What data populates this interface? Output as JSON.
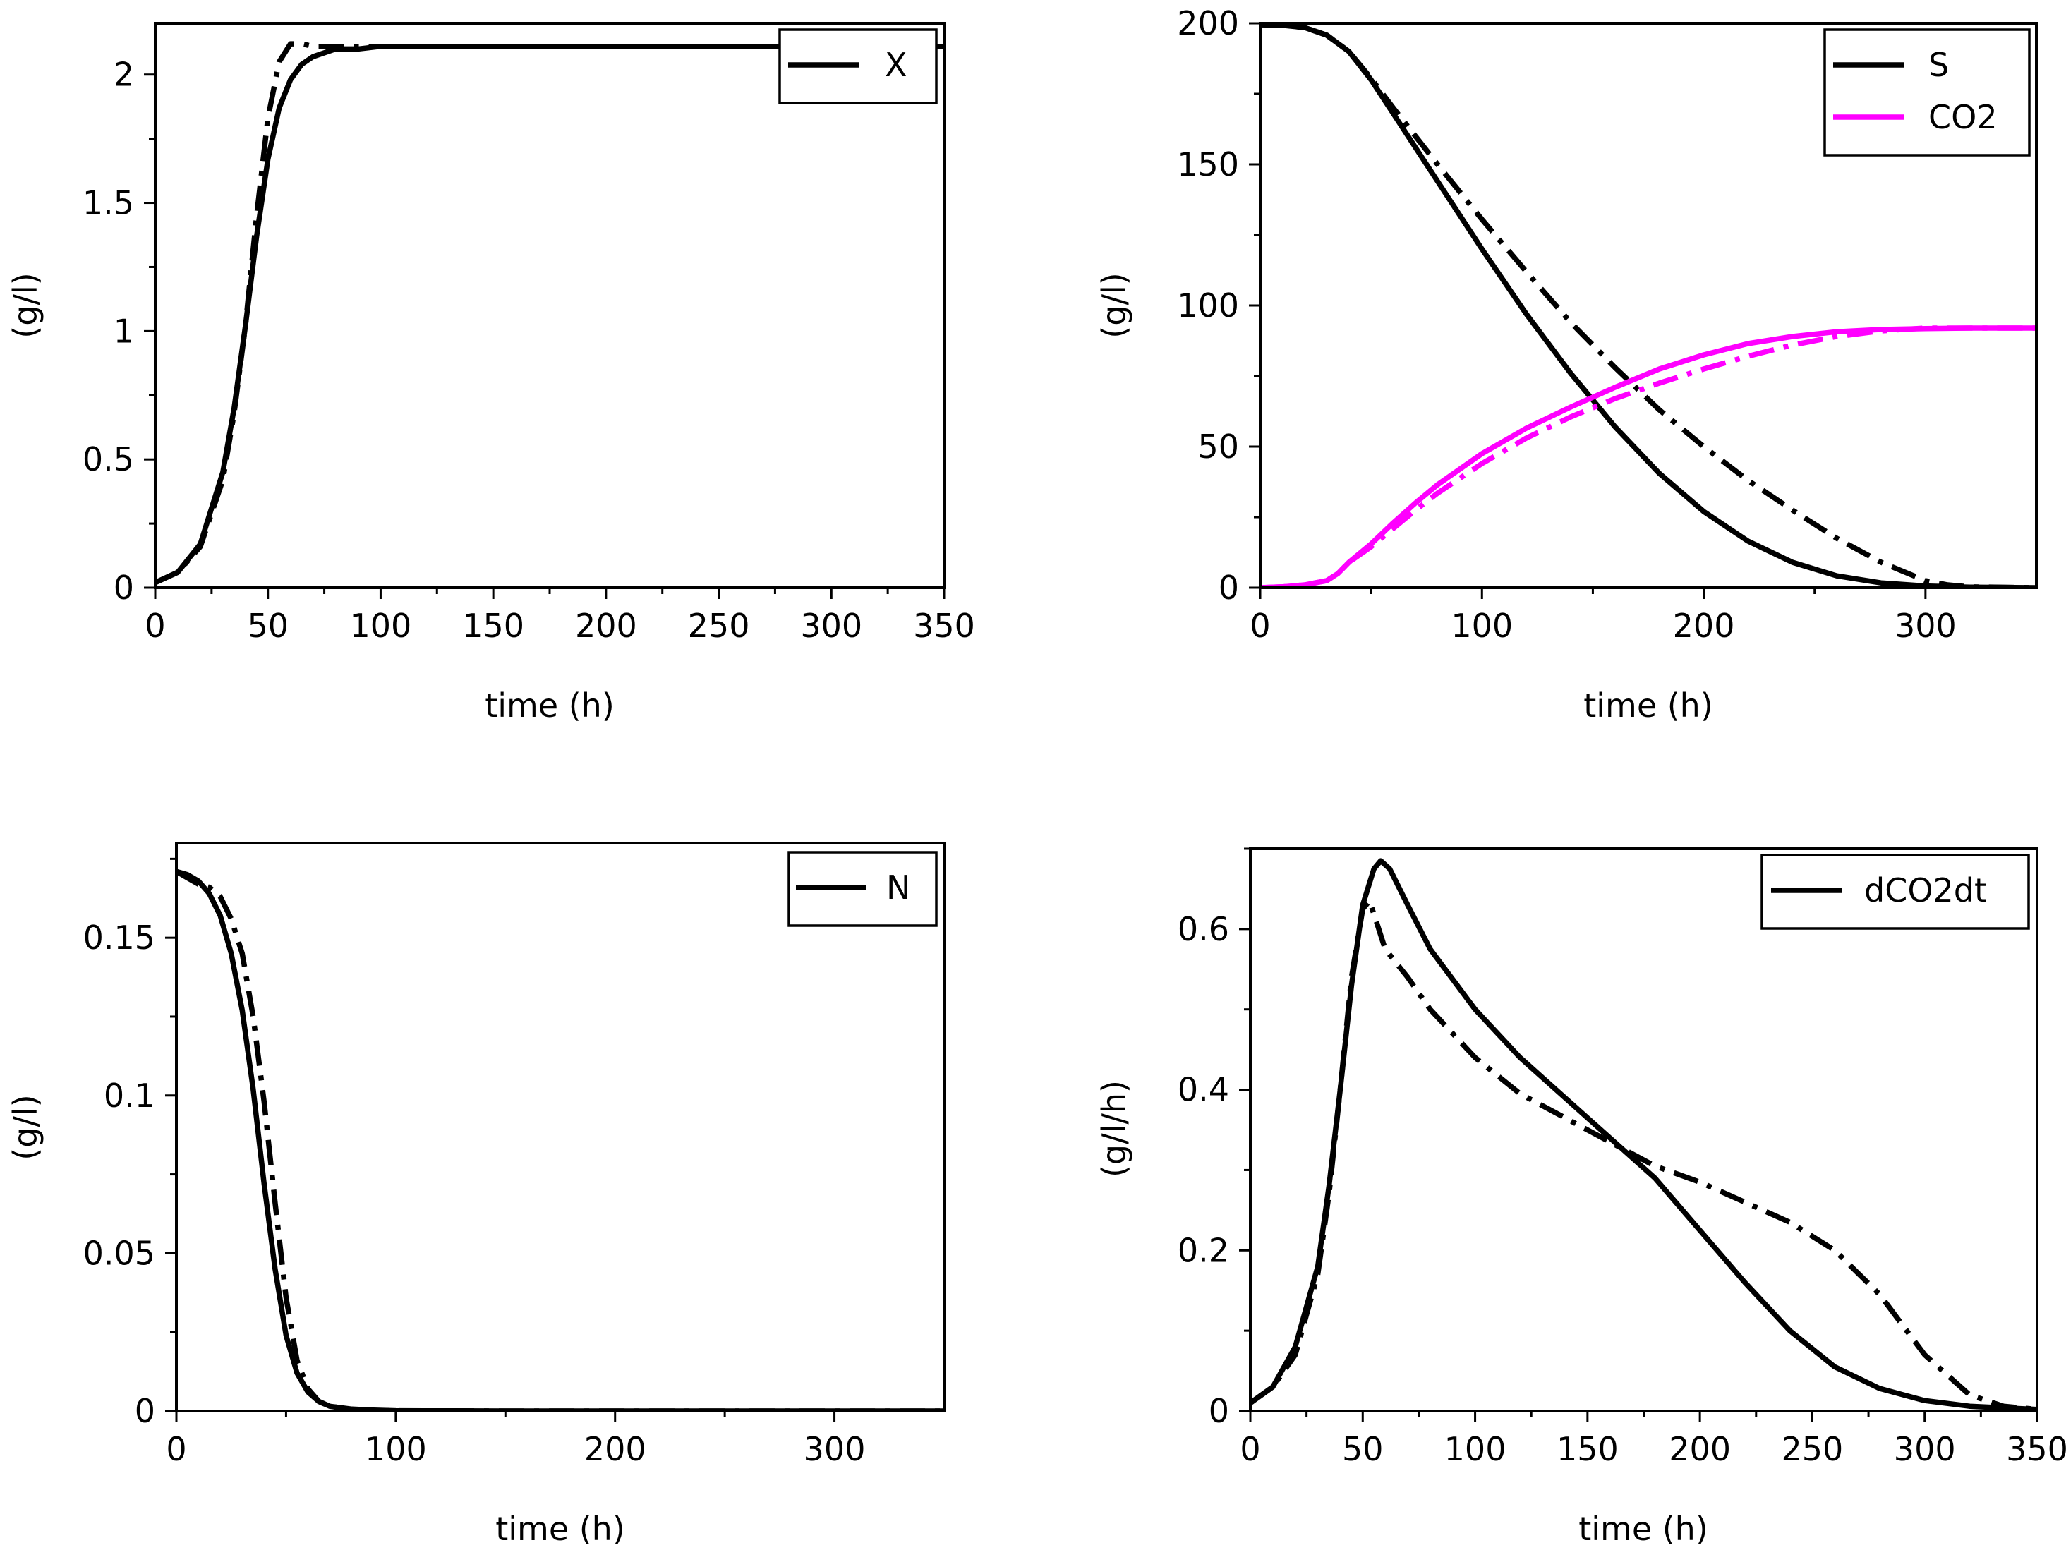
{
  "chart_data": [
    {
      "type": "line",
      "panel": "top-left",
      "title": "",
      "xlabel": "time (h)",
      "ylabel": "(g/l)",
      "xlim": [
        0,
        350
      ],
      "ylim": [
        0,
        2.2
      ],
      "xticks": [
        0,
        50,
        100,
        150,
        200,
        250,
        300,
        350
      ],
      "xtick_labels": [
        "0",
        "50",
        "100",
        "150",
        "200",
        "250",
        "300",
        "350"
      ],
      "yticks": [
        0,
        0.5,
        1,
        1.5,
        2
      ],
      "ytick_labels": [
        "0",
        "0.5",
        "1",
        "1.5",
        "2"
      ],
      "legend_position": "top-right",
      "series": [
        {
          "name": "X",
          "color": "#000000",
          "style": "solid",
          "in_legend": true,
          "x": [
            0,
            10,
            20,
            30,
            35,
            40,
            45,
            50,
            55,
            60,
            65,
            70,
            80,
            90,
            100,
            150,
            200,
            250,
            300,
            350
          ],
          "y": [
            0.02,
            0.06,
            0.17,
            0.45,
            0.7,
            1.02,
            1.37,
            1.67,
            1.87,
            1.98,
            2.04,
            2.07,
            2.1,
            2.1,
            2.11,
            2.11,
            2.11,
            2.11,
            2.11,
            2.11
          ]
        },
        {
          "name": "X (alt)",
          "color": "#000000",
          "style": "dashdot",
          "in_legend": false,
          "x": [
            0,
            10,
            20,
            30,
            35,
            40,
            45,
            50,
            55,
            60,
            65,
            70,
            80,
            90,
            100,
            150,
            200,
            250,
            300,
            350
          ],
          "y": [
            0.02,
            0.06,
            0.16,
            0.42,
            0.68,
            1.02,
            1.45,
            1.83,
            2.05,
            2.12,
            2.12,
            2.11,
            2.11,
            2.11,
            2.11,
            2.11,
            2.11,
            2.11,
            2.11,
            2.11
          ]
        }
      ]
    },
    {
      "type": "line",
      "panel": "top-right",
      "title": "",
      "xlabel": "time (h)",
      "ylabel": "(g/l)",
      "xlim": [
        0,
        350
      ],
      "ylim": [
        0,
        200
      ],
      "xticks": [
        0,
        100,
        200,
        300
      ],
      "xtick_labels": [
        "0",
        "100",
        "200",
        "300"
      ],
      "yticks": [
        0,
        50,
        100,
        150,
        200
      ],
      "ytick_labels": [
        "0",
        "50",
        "100",
        "150",
        "200"
      ],
      "legend_position": "top-right",
      "series": [
        {
          "name": "S",
          "color": "#000000",
          "style": "solid",
          "in_legend": true,
          "x": [
            0,
            10,
            20,
            30,
            40,
            50,
            60,
            70,
            80,
            100,
            120,
            140,
            160,
            180,
            200,
            220,
            240,
            260,
            280,
            300,
            320,
            350
          ],
          "y": [
            199.5,
            199.3,
            198.5,
            195.8,
            190,
            180,
            168,
            156,
            144,
            120,
            97,
            76,
            57,
            40.5,
            27,
            16.5,
            9,
            4.2,
            1.7,
            0.6,
            0.2,
            0
          ]
        },
        {
          "name": "S (alt)",
          "color": "#000000",
          "style": "dashdot",
          "in_legend": false,
          "x": [
            0,
            10,
            20,
            30,
            40,
            50,
            60,
            70,
            80,
            100,
            120,
            140,
            160,
            180,
            200,
            220,
            240,
            260,
            280,
            300,
            310,
            320,
            350
          ],
          "y": [
            199.5,
            199.3,
            198.5,
            195.8,
            190,
            180.5,
            170,
            160,
            150,
            130.5,
            112,
            94,
            78,
            63,
            50,
            38,
            27.5,
            17.5,
            9,
            2.5,
            1,
            0.3,
            0
          ]
        },
        {
          "name": "CO2",
          "color": "#ff00ff",
          "style": "solid",
          "in_legend": true,
          "x": [
            0,
            10,
            20,
            30,
            35,
            40,
            50,
            60,
            70,
            80,
            100,
            120,
            140,
            160,
            180,
            200,
            220,
            240,
            260,
            280,
            300,
            320,
            350
          ],
          "y": [
            0,
            0.3,
            1,
            2.5,
            5,
            9,
            15.5,
            23,
            30,
            36.5,
            47.5,
            56.5,
            64,
            71,
            77.5,
            82.5,
            86.5,
            89,
            90.7,
            91.5,
            91.8,
            92,
            92
          ]
        },
        {
          "name": "CO2 (alt)",
          "color": "#ff00ff",
          "style": "dashdot",
          "in_legend": false,
          "x": [
            0,
            10,
            20,
            30,
            35,
            40,
            50,
            60,
            70,
            80,
            100,
            120,
            140,
            160,
            180,
            200,
            220,
            240,
            260,
            280,
            300,
            320,
            350
          ],
          "y": [
            0,
            0.3,
            1,
            2.5,
            5,
            9,
            14.5,
            21,
            27.5,
            33.5,
            44,
            53,
            60.5,
            67,
            72.5,
            77.5,
            82,
            86,
            89,
            91,
            92,
            92,
            92
          ]
        }
      ]
    },
    {
      "type": "line",
      "panel": "bottom-left",
      "title": "",
      "xlabel": "time (h)",
      "ylabel": "(g/l)",
      "xlim": [
        0,
        350
      ],
      "ylim": [
        0,
        0.18
      ],
      "xticks": [
        0,
        100,
        200,
        300
      ],
      "xtick_labels": [
        "0",
        "100",
        "200",
        "300"
      ],
      "yticks": [
        0,
        0.05,
        0.1,
        0.15
      ],
      "ytick_labels": [
        "0",
        "0.05",
        "0.1",
        "0.15"
      ],
      "legend_position": "top-right",
      "series": [
        {
          "name": "N",
          "color": "#000000",
          "style": "solid",
          "in_legend": true,
          "x": [
            0,
            5,
            10,
            15,
            20,
            25,
            30,
            35,
            40,
            45,
            50,
            55,
            60,
            65,
            70,
            80,
            90,
            100,
            150,
            200,
            250,
            300,
            350
          ],
          "y": [
            0.171,
            0.17,
            0.168,
            0.164,
            0.157,
            0.145,
            0.127,
            0.102,
            0.072,
            0.045,
            0.024,
            0.012,
            0.006,
            0.003,
            0.0015,
            0.0006,
            0.0003,
            0.0001,
            0,
            0,
            0,
            0,
            0
          ]
        },
        {
          "name": "N (alt)",
          "color": "#000000",
          "style": "dashdot",
          "in_legend": false,
          "x": [
            0,
            5,
            10,
            15,
            20,
            25,
            30,
            35,
            40,
            45,
            50,
            55,
            60,
            65,
            70,
            80,
            90,
            100,
            150,
            200,
            250,
            300,
            350
          ],
          "y": [
            0.171,
            0.169,
            0.167,
            0.166,
            0.163,
            0.156,
            0.145,
            0.125,
            0.098,
            0.066,
            0.036,
            0.016,
            0.007,
            0.003,
            0.0015,
            0.0005,
            0.0002,
            0.0001,
            0,
            0,
            0,
            0,
            0
          ]
        }
      ]
    },
    {
      "type": "line",
      "panel": "bottom-right",
      "title": "",
      "xlabel": "time (h)",
      "ylabel": "(g/l/h)",
      "xlim": [
        0,
        350
      ],
      "ylim": [
        0,
        0.7
      ],
      "xticks": [
        0,
        50,
        100,
        150,
        200,
        250,
        300,
        350
      ],
      "xtick_labels": [
        "0",
        "50",
        "100",
        "150",
        "200",
        "250",
        "300",
        "350"
      ],
      "yticks": [
        0,
        0.2,
        0.4,
        0.6
      ],
      "ytick_labels": [
        "0",
        "0.2",
        "0.4",
        "0.6"
      ],
      "legend_position": "top-right",
      "series": [
        {
          "name": "dCO2dt",
          "color": "#000000",
          "style": "solid",
          "in_legend": true,
          "x": [
            0,
            10,
            20,
            30,
            35,
            40,
            45,
            50,
            55,
            58,
            62,
            70,
            80,
            100,
            120,
            140,
            160,
            180,
            200,
            220,
            240,
            260,
            280,
            300,
            320,
            350
          ],
          "y": [
            0.01,
            0.03,
            0.08,
            0.18,
            0.28,
            0.4,
            0.53,
            0.63,
            0.675,
            0.685,
            0.675,
            0.63,
            0.575,
            0.5,
            0.44,
            0.39,
            0.34,
            0.29,
            0.225,
            0.16,
            0.1,
            0.055,
            0.028,
            0.013,
            0.006,
            0.002
          ]
        },
        {
          "name": "dCO2dt (alt)",
          "color": "#000000",
          "style": "dashdot",
          "in_legend": false,
          "x": [
            0,
            10,
            20,
            30,
            35,
            40,
            45,
            50,
            53,
            56,
            60,
            70,
            80,
            100,
            120,
            140,
            160,
            180,
            200,
            220,
            240,
            260,
            280,
            300,
            320,
            335,
            350
          ],
          "y": [
            0.01,
            0.03,
            0.07,
            0.17,
            0.27,
            0.4,
            0.54,
            0.625,
            0.635,
            0.61,
            0.575,
            0.54,
            0.5,
            0.44,
            0.395,
            0.365,
            0.335,
            0.305,
            0.285,
            0.26,
            0.235,
            0.2,
            0.145,
            0.07,
            0.02,
            0.006,
            0.002
          ]
        }
      ]
    }
  ]
}
